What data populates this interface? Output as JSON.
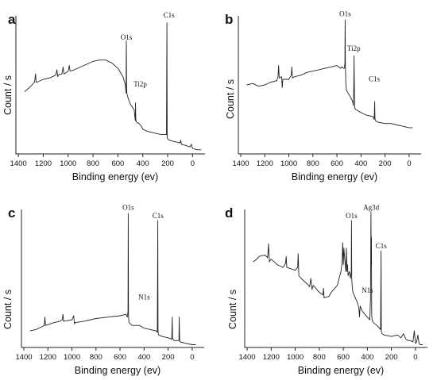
{
  "chart_data": [
    {
      "type": "line",
      "panel_label": "a",
      "xlabel": "Binding energy (ev)",
      "ylabel": "Count / s",
      "xlim": [
        1420,
        -100
      ],
      "ylim": [
        0,
        100
      ],
      "xticks": [
        1400,
        1200,
        1000,
        800,
        600,
        400,
        200,
        0
      ],
      "x_reversed": true,
      "annotations": [
        {
          "text": "O1s",
          "x": 532,
          "y": 81
        },
        {
          "text": "Ti2p",
          "x": 420,
          "y": 47
        },
        {
          "text": "C1s",
          "x": 190,
          "y": 97
        }
      ],
      "series": [
        {
          "x": [
            1350,
            1300,
            1270,
            1262,
            1258,
            1250,
            1200,
            1150,
            1100,
            1090,
            1085,
            1080,
            1050,
            1040,
            1035,
            1030,
            1000,
            990,
            985,
            980,
            950,
            900,
            850,
            800,
            750,
            700,
            650,
            600,
            560,
            540,
            534,
            532,
            530,
            526,
            520,
            500,
            470,
            460,
            458,
            456,
            450,
            430,
            420,
            410,
            400,
            380,
            350,
            300,
            250,
            220,
            210,
            206,
            204,
            200,
            190,
            150,
            100,
            95,
            90,
            50,
            20,
            10,
            0,
            -40,
            -70
          ],
          "y": [
            45,
            49,
            52,
            58,
            52,
            52,
            54,
            55,
            57,
            61,
            56,
            57,
            58,
            63,
            58,
            58,
            60,
            64,
            60,
            60,
            61,
            63,
            65,
            67,
            68,
            68,
            66,
            62,
            56,
            50,
            44,
            82,
            46,
            43,
            41,
            36,
            32,
            24,
            37,
            25,
            23,
            22,
            21,
            20,
            18,
            17,
            16,
            15,
            14,
            14,
            14,
            95,
            12,
            11,
            10,
            9,
            8,
            10,
            7,
            6,
            5,
            7,
            4,
            3,
            3
          ]
        }
      ]
    },
    {
      "type": "line",
      "panel_label": "b",
      "xlabel": "Binding energy (ev)",
      "ylabel": "Count / s",
      "xlim": [
        1420,
        -100
      ],
      "ylim": [
        0,
        100
      ],
      "xticks": [
        1400,
        1200,
        1000,
        800,
        600,
        400,
        200,
        0
      ],
      "x_reversed": true,
      "annotations": [
        {
          "text": "O1s",
          "x": 532,
          "y": 98
        },
        {
          "text": "Ti2p",
          "x": 460,
          "y": 73
        },
        {
          "text": "C1s",
          "x": 290,
          "y": 51
        }
      ],
      "series": [
        {
          "x": [
            1350,
            1300,
            1250,
            1200,
            1150,
            1100,
            1090,
            1085,
            1080,
            1060,
            1055,
            1050,
            1000,
            980,
            975,
            970,
            950,
            900,
            850,
            800,
            750,
            700,
            650,
            600,
            570,
            560,
            545,
            538,
            534,
            532,
            530,
            526,
            520,
            500,
            480,
            470,
            464,
            460,
            458,
            456,
            452,
            440,
            420,
            400,
            380,
            350,
            300,
            290,
            286,
            284,
            282,
            278,
            260,
            200,
            150,
            100,
            50,
            0,
            -30
          ],
          "y": [
            50,
            51,
            49,
            50,
            52,
            53,
            56,
            64,
            55,
            56,
            48,
            54,
            54,
            57,
            63,
            55,
            56,
            57,
            59,
            60,
            61,
            62,
            63,
            64,
            62,
            63,
            62,
            62,
            66,
            97,
            64,
            50,
            46,
            43,
            40,
            38,
            35,
            50,
            71,
            52,
            33,
            32,
            31,
            30,
            29,
            28,
            27,
            25,
            38,
            26,
            25,
            24,
            23,
            22,
            22,
            21,
            20,
            19,
            19
          ]
        }
      ]
    },
    {
      "type": "line",
      "panel_label": "c",
      "xlabel": "Binding energy (ev)",
      "ylabel": "Count / s",
      "xlim": [
        1420,
        -100
      ],
      "ylim": [
        0,
        100
      ],
      "xticks": [
        1400,
        1200,
        1000,
        800,
        600,
        400,
        200,
        0
      ],
      "x_reversed": true,
      "annotations": [
        {
          "text": "O1s",
          "x": 532,
          "y": 98
        },
        {
          "text": "N1s",
          "x": 400,
          "y": 33
        },
        {
          "text": "C1s",
          "x": 285,
          "y": 92
        }
      ],
      "series": [
        {
          "x": [
            1350,
            1300,
            1250,
            1230,
            1225,
            1220,
            1150,
            1100,
            1080,
            1075,
            1070,
            1000,
            985,
            980,
            975,
            900,
            800,
            700,
            600,
            550,
            540,
            534,
            532,
            530,
            526,
            500,
            440,
            420,
            400,
            350,
            300,
            290,
            286,
            284,
            282,
            278,
            250,
            200,
            170,
            166,
            164,
            160,
            150,
            120,
            110,
            108,
            104,
            100,
            50,
            0,
            -30
          ],
          "y": [
            12,
            13,
            15,
            16,
            22,
            16,
            18,
            19,
            20,
            24,
            19,
            20,
            23,
            17,
            18,
            19,
            21,
            22,
            23,
            24,
            22,
            26,
            97,
            24,
            18,
            16,
            16,
            15,
            14,
            13,
            12,
            11,
            92,
            12,
            10,
            9,
            8,
            7,
            6,
            22,
            7,
            6,
            5,
            5,
            5,
            22,
            5,
            4,
            3,
            2,
            2
          ]
        }
      ]
    },
    {
      "type": "line",
      "panel_label": "d",
      "xlabel": "Binding energy (ev)",
      "ylabel": "Count / s",
      "xlim": [
        1420,
        -100
      ],
      "ylim": [
        0,
        100
      ],
      "xticks": [
        1400,
        1200,
        1000,
        800,
        600,
        400,
        200,
        0
      ],
      "x_reversed": true,
      "annotations": [
        {
          "text": "O1s",
          "x": 532,
          "y": 92
        },
        {
          "text": "Ag3d",
          "x": 368,
          "y": 98
        },
        {
          "text": "N1s",
          "x": 400,
          "y": 38
        },
        {
          "text": "C1s",
          "x": 285,
          "y": 70
        }
      ],
      "series": [
        {
          "x": [
            1350,
            1320,
            1300,
            1250,
            1230,
            1222,
            1215,
            1200,
            1150,
            1100,
            1080,
            1075,
            1070,
            1000,
            980,
            975,
            970,
            950,
            900,
            880,
            870,
            860,
            850,
            800,
            770,
            765,
            760,
            720,
            700,
            650,
            620,
            610,
            605,
            600,
            595,
            580,
            575,
            570,
            565,
            560,
            550,
            540,
            534,
            532,
            530,
            526,
            520,
            500,
            480,
            470,
            465,
            460,
            440,
            420,
            400,
            380,
            374,
            370,
            368,
            366,
            364,
            360,
            350,
            320,
            300,
            290,
            286,
            284,
            282,
            278,
            260,
            200,
            150,
            120,
            100,
            80,
            60,
            40,
            20,
            10,
            0,
            -10,
            -20,
            -30,
            -40,
            -60
          ],
          "y": [
            62,
            64,
            66,
            67,
            65,
            75,
            62,
            64,
            60,
            58,
            61,
            66,
            58,
            56,
            58,
            68,
            52,
            50,
            46,
            44,
            50,
            42,
            45,
            40,
            38,
            43,
            36,
            37,
            40,
            45,
            55,
            62,
            76,
            60,
            72,
            55,
            72,
            55,
            60,
            52,
            55,
            50,
            55,
            92,
            50,
            44,
            40,
            36,
            32,
            28,
            22,
            30,
            26,
            24,
            22,
            20,
            35,
            98,
            60,
            80,
            24,
            20,
            18,
            16,
            14,
            13,
            70,
            12,
            11,
            10,
            9,
            8,
            9,
            7,
            10,
            6,
            5,
            5,
            4,
            12,
            3,
            4,
            9,
            3,
            2,
            2
          ]
        }
      ]
    }
  ]
}
